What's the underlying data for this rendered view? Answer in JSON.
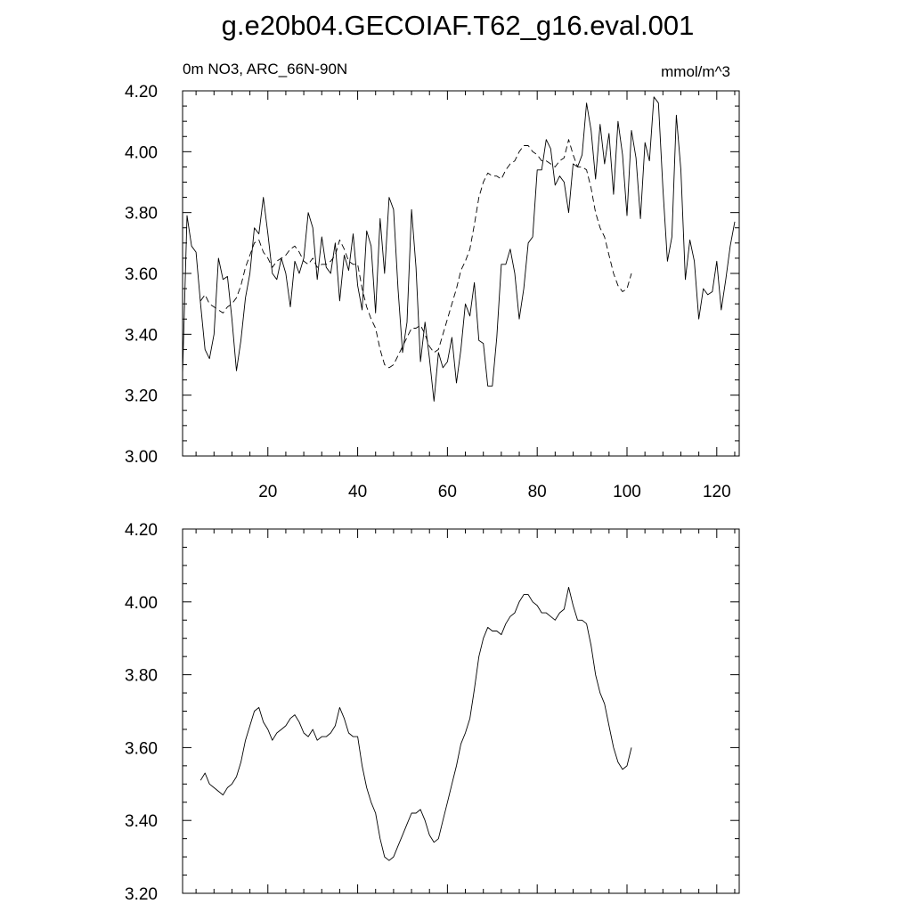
{
  "title": "g.e20b04.GECOIAF.T62_g16.eval.001",
  "subtitle_left": "0m NO3, ARC_66N-90N",
  "subtitle_right": "mmol/m^3",
  "colors": {
    "line": "#000000",
    "background": "#ffffff"
  },
  "chart_data": [
    {
      "type": "line",
      "title": "",
      "xlabel": "",
      "ylabel": "",
      "xlim": [
        1,
        125
      ],
      "ylim": [
        3.0,
        4.2
      ],
      "x_ticks": [
        20,
        40,
        60,
        80,
        100,
        120
      ],
      "x_tick_labels": [
        "20",
        "40",
        "60",
        "80",
        "100",
        "120"
      ],
      "y_ticks": [
        3.0,
        3.2,
        3.4,
        3.6,
        3.8,
        4.0,
        4.2
      ],
      "y_tick_labels": [
        "3.00",
        "3.20",
        "3.40",
        "3.60",
        "3.80",
        "4.00",
        "4.20"
      ],
      "grid": false,
      "series": [
        {
          "style": "solid",
          "x_start": 1,
          "values": [
            3.27,
            3.79,
            3.69,
            3.67,
            3.5,
            3.35,
            3.32,
            3.4,
            3.65,
            3.58,
            3.59,
            3.45,
            3.28,
            3.38,
            3.52,
            3.6,
            3.75,
            3.73,
            3.85,
            3.73,
            3.6,
            3.58,
            3.65,
            3.6,
            3.49,
            3.64,
            3.6,
            3.65,
            3.8,
            3.75,
            3.58,
            3.72,
            3.62,
            3.6,
            3.7,
            3.51,
            3.66,
            3.61,
            3.73,
            3.56,
            3.48,
            3.74,
            3.69,
            3.47,
            3.78,
            3.6,
            3.85,
            3.81,
            3.55,
            3.34,
            3.44,
            3.81,
            3.62,
            3.31,
            3.44,
            3.32,
            3.18,
            3.34,
            3.29,
            3.31,
            3.39,
            3.24,
            3.35,
            3.5,
            3.46,
            3.57,
            3.38,
            3.37,
            3.23,
            3.23,
            3.39,
            3.63,
            3.63,
            3.68,
            3.6,
            3.45,
            3.55,
            3.7,
            3.72,
            3.94,
            3.94,
            4.04,
            4.01,
            3.89,
            3.92,
            3.9,
            3.8,
            3.96,
            3.95,
            3.99,
            4.16,
            4.07,
            3.91,
            4.09,
            3.96,
            4.06,
            3.86,
            4.1,
            3.99,
            3.79,
            4.07,
            3.98,
            3.78,
            4.03,
            3.97,
            4.18,
            4.16,
            3.88,
            3.64,
            3.72,
            4.12,
            3.94,
            3.58,
            3.71,
            3.64,
            3.45,
            3.55,
            3.53,
            3.54,
            3.64,
            3.48,
            3.58,
            3.69,
            3.77
          ]
        },
        {
          "style": "dashed",
          "x_start": 5,
          "values": [
            3.51,
            3.53,
            3.5,
            3.49,
            3.48,
            3.47,
            3.49,
            3.5,
            3.52,
            3.56,
            3.62,
            3.66,
            3.7,
            3.71,
            3.67,
            3.65,
            3.62,
            3.64,
            3.65,
            3.66,
            3.68,
            3.69,
            3.67,
            3.64,
            3.63,
            3.65,
            3.62,
            3.63,
            3.63,
            3.64,
            3.66,
            3.71,
            3.68,
            3.64,
            3.63,
            3.63,
            3.55,
            3.49,
            3.45,
            3.42,
            3.35,
            3.3,
            3.29,
            3.3,
            3.33,
            3.36,
            3.39,
            3.42,
            3.42,
            3.43,
            3.4,
            3.36,
            3.34,
            3.35,
            3.4,
            3.45,
            3.5,
            3.55,
            3.61,
            3.64,
            3.68,
            3.76,
            3.85,
            3.9,
            3.93,
            3.92,
            3.92,
            3.91,
            3.94,
            3.96,
            3.97,
            4.0,
            4.02,
            4.02,
            4.0,
            3.99,
            3.97,
            3.97,
            3.96,
            3.95,
            3.97,
            3.98,
            4.04,
            3.99,
            3.95,
            3.95,
            3.94,
            3.88,
            3.8,
            3.75,
            3.72,
            3.66,
            3.6,
            3.56,
            3.54,
            3.55,
            3.6
          ]
        }
      ]
    },
    {
      "type": "line",
      "title": "",
      "xlabel": "",
      "ylabel": "",
      "xlim": [
        1,
        125
      ],
      "ylim": [
        3.2,
        4.2
      ],
      "x_ticks": [
        20,
        40,
        60,
        80,
        100,
        120
      ],
      "x_tick_labels": [],
      "y_ticks": [
        3.2,
        3.4,
        3.6,
        3.8,
        4.0,
        4.2
      ],
      "y_tick_labels": [
        "3.20",
        "3.40",
        "3.60",
        "3.80",
        "4.00",
        "4.20"
      ],
      "grid": false,
      "series": [
        {
          "style": "solid",
          "x_start": 5,
          "values": [
            3.51,
            3.53,
            3.5,
            3.49,
            3.48,
            3.47,
            3.49,
            3.5,
            3.52,
            3.56,
            3.62,
            3.66,
            3.7,
            3.71,
            3.67,
            3.65,
            3.62,
            3.64,
            3.65,
            3.66,
            3.68,
            3.69,
            3.67,
            3.64,
            3.63,
            3.65,
            3.62,
            3.63,
            3.63,
            3.64,
            3.66,
            3.71,
            3.68,
            3.64,
            3.63,
            3.63,
            3.55,
            3.49,
            3.45,
            3.42,
            3.35,
            3.3,
            3.29,
            3.3,
            3.33,
            3.36,
            3.39,
            3.42,
            3.42,
            3.43,
            3.4,
            3.36,
            3.34,
            3.35,
            3.4,
            3.45,
            3.5,
            3.55,
            3.61,
            3.64,
            3.68,
            3.76,
            3.85,
            3.9,
            3.93,
            3.92,
            3.92,
            3.91,
            3.94,
            3.96,
            3.97,
            4.0,
            4.02,
            4.02,
            4.0,
            3.99,
            3.97,
            3.97,
            3.96,
            3.95,
            3.97,
            3.98,
            4.04,
            3.99,
            3.95,
            3.95,
            3.94,
            3.88,
            3.8,
            3.75,
            3.72,
            3.66,
            3.6,
            3.56,
            3.54,
            3.55,
            3.6
          ]
        }
      ]
    }
  ]
}
